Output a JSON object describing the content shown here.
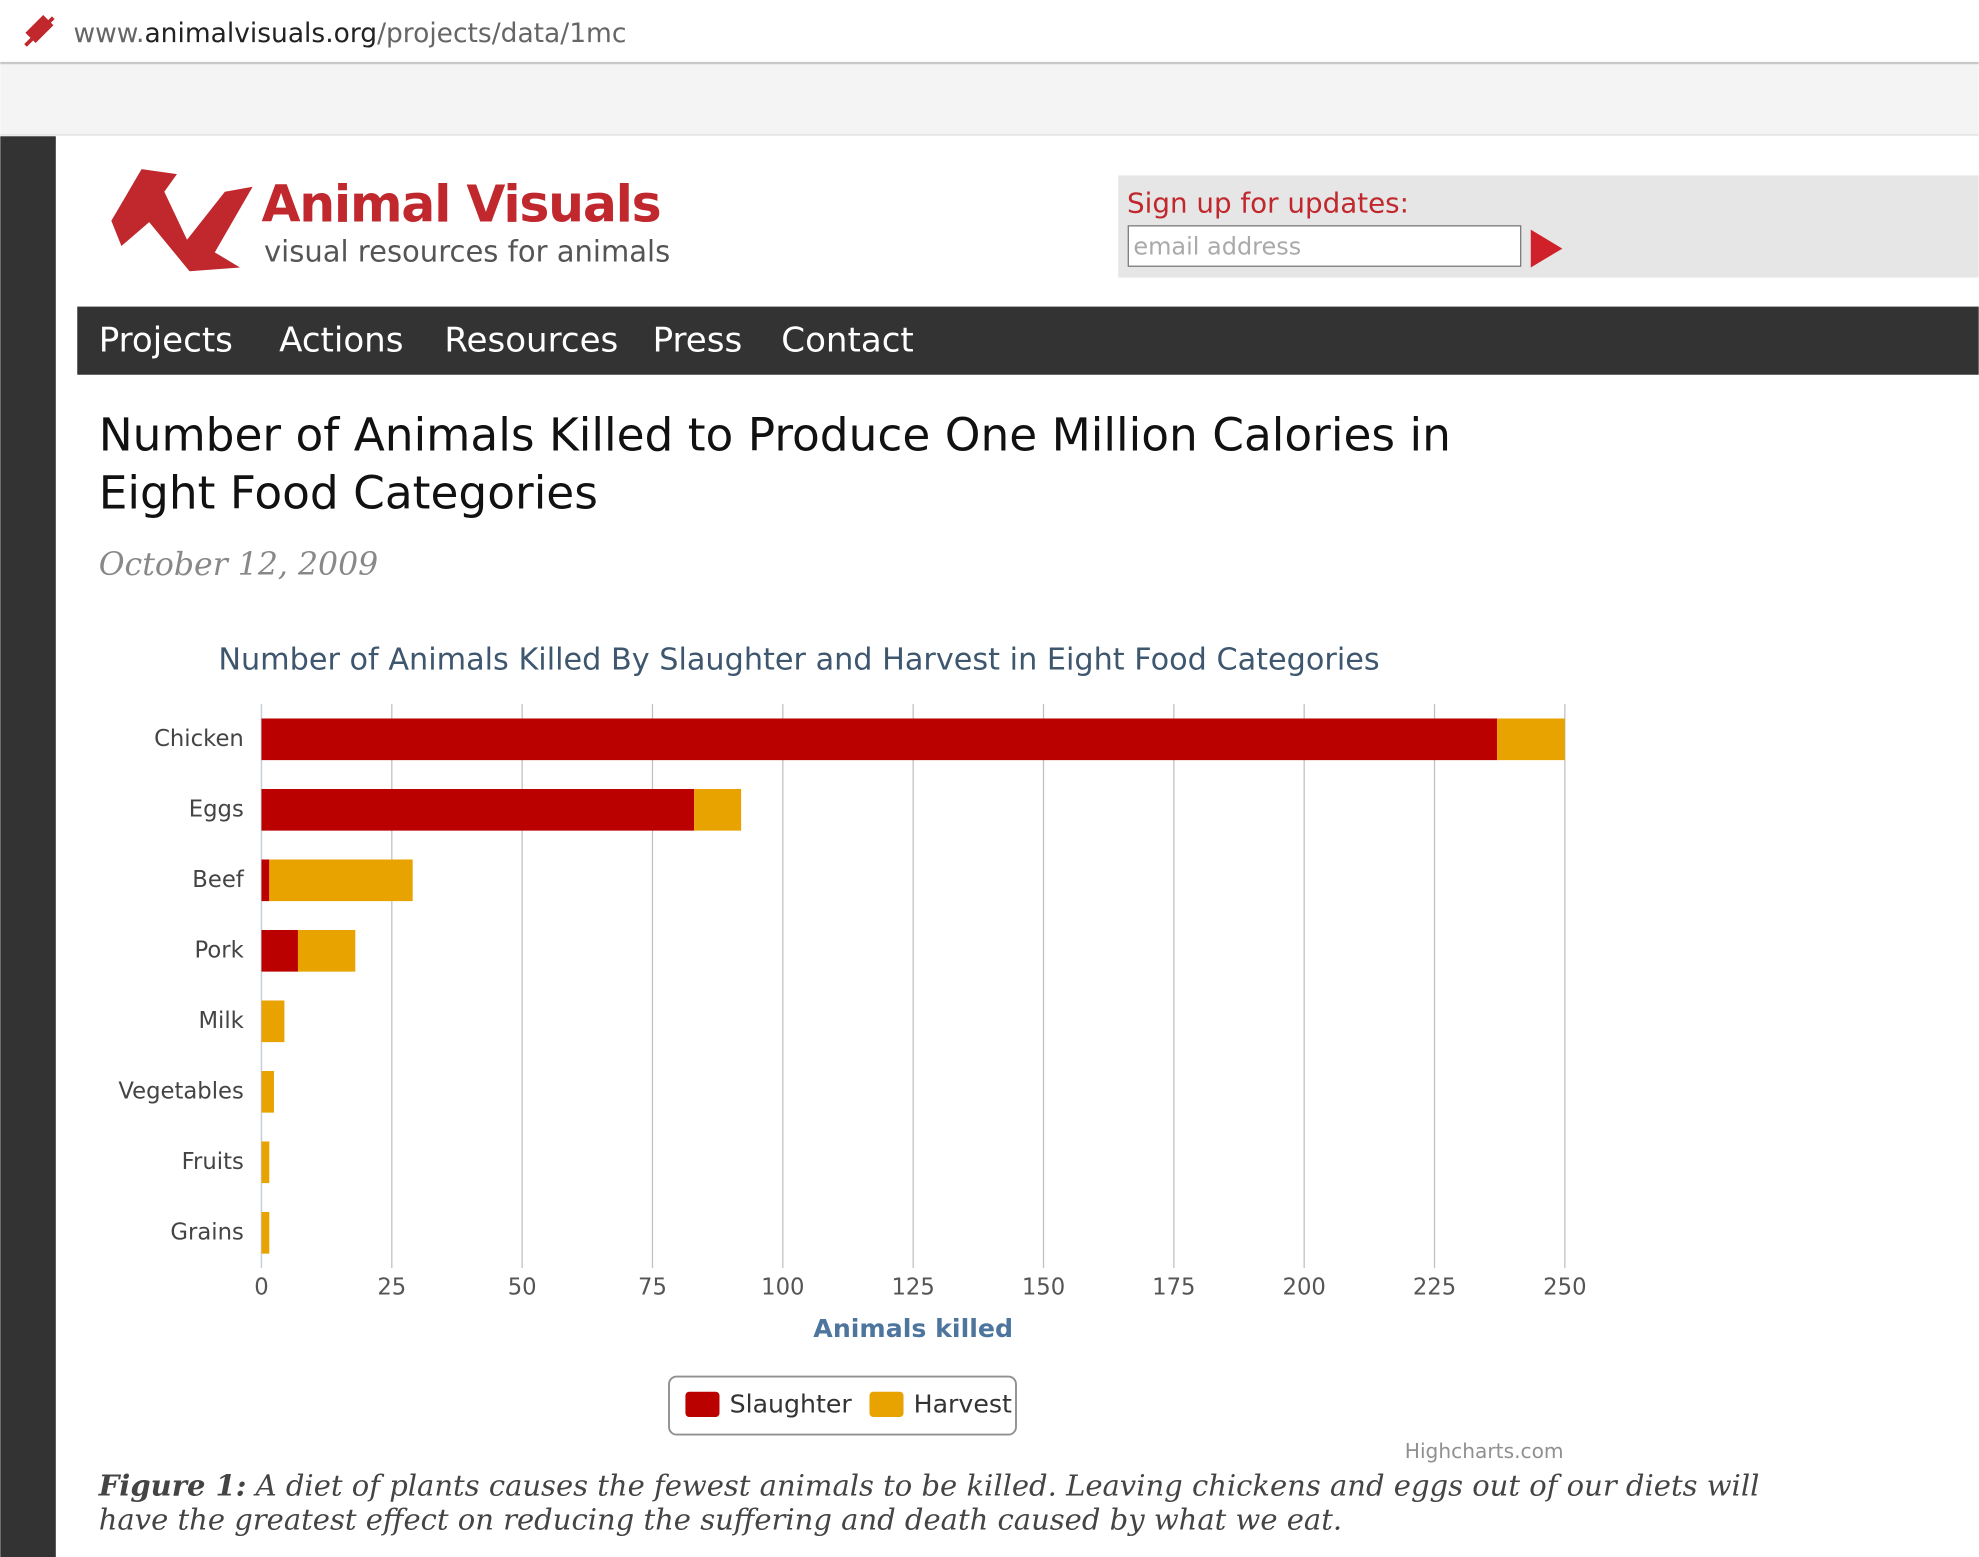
{
  "browser": {
    "url_prefix": "www.",
    "url_domain": "animalvisuals.org",
    "url_path": "/projects/data/1mc"
  },
  "logo": {
    "name": "Animal Visuals",
    "tagline": "visual resources for animals"
  },
  "signup": {
    "label": "Sign up for updates:",
    "placeholder": "email address"
  },
  "nav": [
    "Projects",
    "Actions",
    "Resources",
    "Press",
    "Contact"
  ],
  "article": {
    "title_lines": [
      "Number of Animals Killed to Produce One Million Calories in",
      "Eight Food Categories"
    ],
    "date": "October 12, 2009"
  },
  "chart_data": {
    "type": "bar",
    "orientation": "horizontal",
    "stacked": true,
    "title": "Number of Animals Killed By Slaughter and Harvest in Eight Food Categories",
    "categories": [
      "Chicken",
      "Eggs",
      "Beef",
      "Pork",
      "Milk",
      "Vegetables",
      "Fruits",
      "Grains"
    ],
    "series": [
      {
        "name": "Slaughter",
        "color": "#bb0000",
        "values": [
          237,
          83,
          1.5,
          7,
          0,
          0,
          0,
          0
        ]
      },
      {
        "name": "Harvest",
        "color": "#e8a300",
        "values": [
          13,
          9,
          27.5,
          11,
          4.4,
          2.4,
          1.5,
          1.5
        ]
      }
    ],
    "xlabel": "Animals killed",
    "xlim": [
      0,
      250
    ],
    "xticks": [
      0,
      25,
      50,
      75,
      100,
      125,
      150,
      175,
      200,
      225,
      250
    ],
    "grid": true,
    "legend": "bottom",
    "credit": "Highcharts.com"
  },
  "caption": {
    "label": "Figure 1:",
    "lines": [
      " A diet of plants causes the fewest animals to be killed. Leaving chickens and eggs out of our diets will",
      "have the greatest effect on reducing the suffering and death caused by what we eat."
    ]
  }
}
